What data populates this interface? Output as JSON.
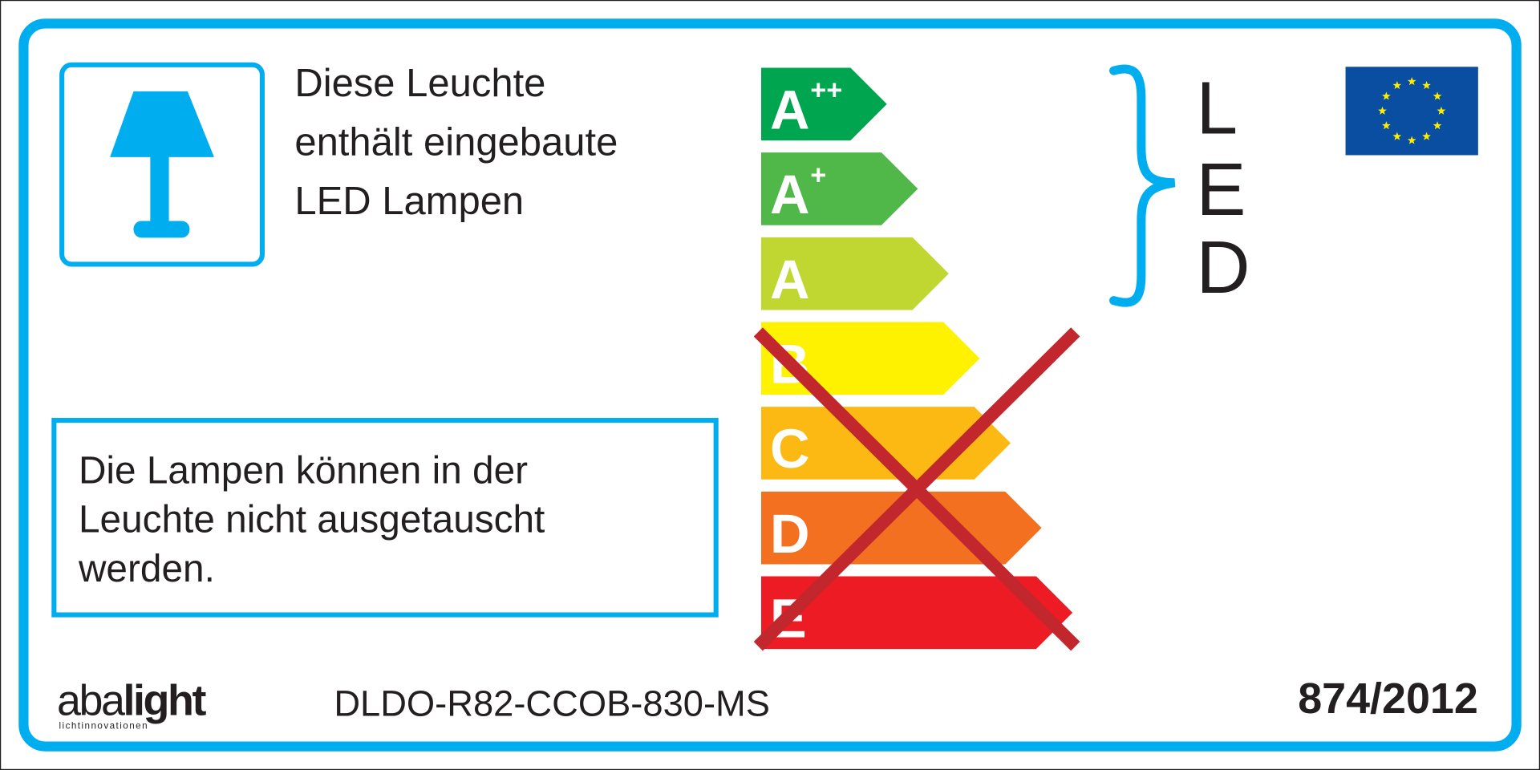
{
  "label": {
    "intro_lines": [
      "Diese Leuchte",
      "enthält eingebaute",
      "LED Lampen"
    ],
    "notice_lines": [
      "Die Lampen können in der",
      "Leuchte nicht ausgetauscht",
      "werden."
    ],
    "led_letters": [
      "L",
      "E",
      "D"
    ],
    "model": "DLDO-R82-CCOB-830-MS",
    "regulation": "874/2012",
    "brand": {
      "name_light": "aba",
      "name_bold": "light",
      "tagline": "lichtinnovationen"
    },
    "lamp_icon": "table-lamp-icon",
    "flag_icon": "eu-flag-icon",
    "classes": [
      {
        "letter": "A",
        "sup": "++",
        "color": "#00a54f"
      },
      {
        "letter": "A",
        "sup": "+",
        "color": "#50b848"
      },
      {
        "letter": "A",
        "sup": "",
        "color": "#bfd730"
      },
      {
        "letter": "B",
        "sup": "",
        "color": "#fff200"
      },
      {
        "letter": "C",
        "sup": "",
        "color": "#fdb913"
      },
      {
        "letter": "D",
        "sup": "",
        "color": "#f37021"
      },
      {
        "letter": "E",
        "sup": "",
        "color": "#ed1c24"
      }
    ],
    "crossed_classes": [
      "B",
      "C",
      "D",
      "E"
    ],
    "colors": {
      "frame": "#00aeef",
      "cross": "#c1272d",
      "flag": "#0a4ea2",
      "stars": "#ffed00"
    }
  }
}
